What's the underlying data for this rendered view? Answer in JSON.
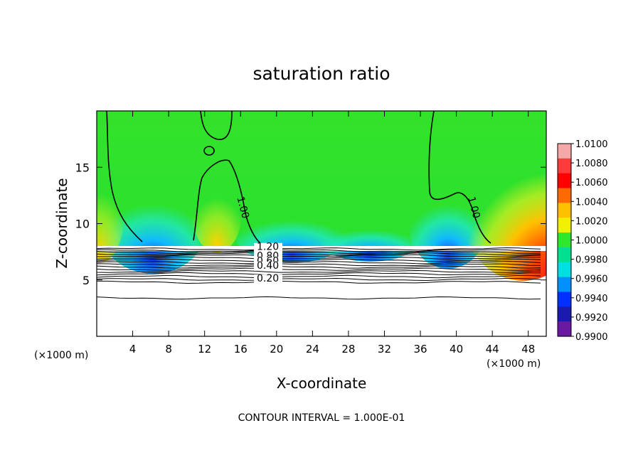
{
  "chart_data": {
    "type": "heatmap",
    "title": "saturation ratio",
    "xlabel": "X-coordinate",
    "ylabel": "Z-coordinate",
    "x_unit": "(×1000 m)",
    "x_unit_right": "(×1000 m)",
    "xlim": [
      0,
      50
    ],
    "ylim": [
      0,
      20
    ],
    "x_ticks": [
      4,
      8,
      12,
      16,
      20,
      24,
      28,
      32,
      36,
      40,
      44,
      48
    ],
    "y_ticks": [
      5,
      10,
      15
    ],
    "footer": "CONTOUR INTERVAL = 1.000E-01",
    "colorbar": {
      "min": 0.99,
      "max": 1.01,
      "labels": [
        "1.0100",
        "1.0080",
        "1.0060",
        "1.0040",
        "1.0020",
        "1.0000",
        "0.9980",
        "0.9960",
        "0.9940",
        "0.9920",
        "0.9900"
      ],
      "colors": [
        "#f4a8a8",
        "#ff3a3a",
        "#ff0000",
        "#ff6a00",
        "#ffc000",
        "#f0f000",
        "#2ee82e",
        "#00e090",
        "#00e0e0",
        "#0090ff",
        "#0030ff",
        "#1a1ab0",
        "#6a1aa0"
      ]
    },
    "contour_labels": [
      {
        "text": "1.00",
        "x": 15.6,
        "y": 12.3
      },
      {
        "text": "1.00",
        "x": 41.3,
        "y": 12.3
      },
      {
        "text": "1.20",
        "x": 17.8,
        "y": 7.65
      },
      {
        "text": "0.80",
        "x": 17.8,
        "y": 6.85
      },
      {
        "text": "0.60",
        "x": 17.8,
        "y": 6.4
      },
      {
        "text": "0.40",
        "x": 17.8,
        "y": 6.0
      },
      {
        "text": "0.20",
        "x": 17.8,
        "y": 4.85
      }
    ],
    "contour_levels_y": [
      7.75,
      7.6,
      7.45,
      7.3,
      7.15,
      6.95,
      6.75,
      6.55,
      6.35,
      6.15,
      5.95,
      5.75,
      5.55,
      5.3,
      5.05,
      4.8,
      3.4
    ]
  }
}
